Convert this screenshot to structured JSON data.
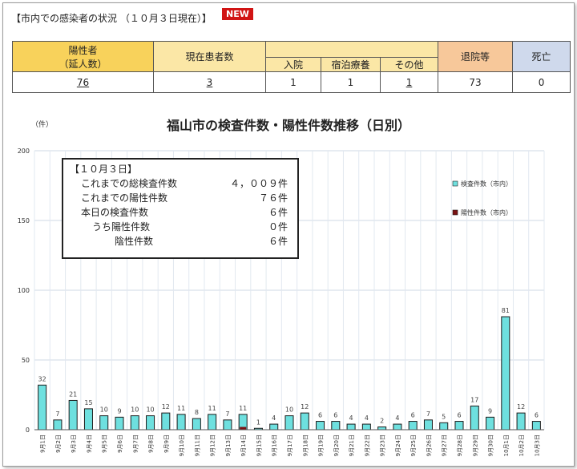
{
  "header": {
    "title": "【市内での感染者の状況 （１０月３日現在）】",
    "badge": "NEW"
  },
  "stats": {
    "positive_label_1": "陽性者",
    "positive_label_2": "（延人数）",
    "current_label": "現在患者数",
    "hospital_label": "入院",
    "lodging_label": "宿泊療養",
    "other_label": "その他",
    "discharged_label": "退院等",
    "death_label": "死亡",
    "positive": "76",
    "current": "3",
    "hospital": "1",
    "lodging": "1",
    "other": "1",
    "discharged": "73",
    "death": "0"
  },
  "infobox": {
    "date": "【１０月３日】",
    "rows": [
      {
        "label": "これまでの総検査件数",
        "value": "４，００９件"
      },
      {
        "label": "これまでの陽性件数",
        "value": "７６件"
      },
      {
        "label": "本日の検査件数",
        "value": "６件"
      },
      {
        "label": "うち陽性件数",
        "value": "０件"
      },
      {
        "label": "陰性件数",
        "value": "６件"
      }
    ]
  },
  "chart_data": {
    "type": "bar",
    "title": "福山市の検査件数・陽性件数推移（日別）",
    "ylabel": "（件）",
    "ylim": [
      0,
      200
    ],
    "yticks": [
      0,
      50,
      100,
      150,
      200
    ],
    "grid": true,
    "legend_position": "right",
    "categories": [
      "9月1日",
      "9月2日",
      "9月3日",
      "9月4日",
      "9月5日",
      "9月6日",
      "9月7日",
      "9月8日",
      "9月9日",
      "9月10日",
      "9月11日",
      "9月12日",
      "9月13日",
      "9月14日",
      "9月15日",
      "9月16日",
      "9月17日",
      "9月18日",
      "9月19日",
      "9月20日",
      "9月21日",
      "9月22日",
      "9月23日",
      "9月24日",
      "9月25日",
      "9月26日",
      "9月27日",
      "9月28日",
      "9月29日",
      "9月30日",
      "10月1日",
      "10月2日",
      "10月3日"
    ],
    "series": [
      {
        "name": "検査件数（市内）",
        "color": "#6ee0df",
        "values": [
          32,
          7,
          21,
          15,
          10,
          9,
          10,
          10,
          12,
          11,
          8,
          11,
          7,
          11,
          1,
          4,
          10,
          12,
          6,
          6,
          4,
          4,
          2,
          4,
          6,
          7,
          5,
          6,
          17,
          9,
          81,
          12,
          6
        ]
      },
      {
        "name": "陽性件数（市内）",
        "color": "#7a1212",
        "values": [
          0,
          0,
          0,
          0,
          0,
          0,
          0,
          0,
          0,
          0,
          0,
          0,
          0,
          2,
          0,
          0,
          0,
          0,
          0,
          0,
          0,
          0,
          0,
          0,
          0,
          0,
          0,
          0,
          0,
          0,
          0,
          0,
          0
        ]
      }
    ]
  }
}
